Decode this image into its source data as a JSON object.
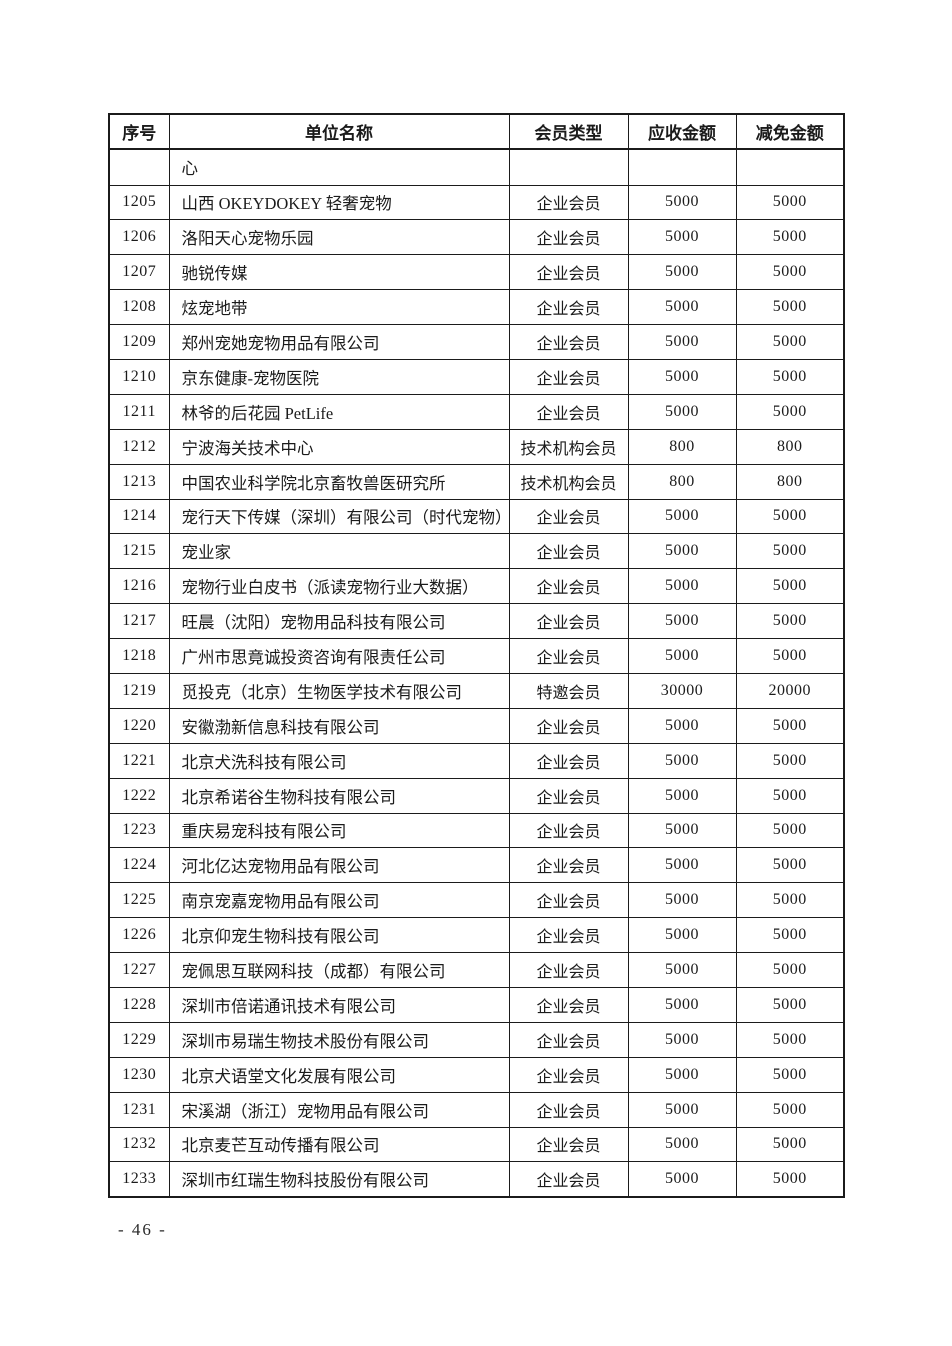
{
  "page": {
    "footer_text": "- 46 -"
  },
  "colors": {
    "background": "#ffffff",
    "border": "#1b1b1b",
    "text": "#1b1b1b"
  },
  "table": {
    "headers": [
      "序号",
      "单位名称",
      "会员类型",
      "应收金额",
      "减免金额"
    ],
    "continuation_row": {
      "no": "",
      "name": "心",
      "type": "",
      "receivable": "",
      "reduction": ""
    },
    "rows": [
      {
        "no": "1205",
        "name": "山西 OKEYDOKEY 轻奢宠物",
        "type": "企业会员",
        "receivable": "5000",
        "reduction": "5000"
      },
      {
        "no": "1206",
        "name": "洛阳天心宠物乐园",
        "type": "企业会员",
        "receivable": "5000",
        "reduction": "5000"
      },
      {
        "no": "1207",
        "name": "驰锐传媒",
        "type": "企业会员",
        "receivable": "5000",
        "reduction": "5000"
      },
      {
        "no": "1208",
        "name": "炫宠地带",
        "type": "企业会员",
        "receivable": "5000",
        "reduction": "5000"
      },
      {
        "no": "1209",
        "name": "郑州宠她宠物用品有限公司",
        "type": "企业会员",
        "receivable": "5000",
        "reduction": "5000"
      },
      {
        "no": "1210",
        "name": "京东健康-宠物医院",
        "type": "企业会员",
        "receivable": "5000",
        "reduction": "5000"
      },
      {
        "no": "1211",
        "name": "林爷的后花园 PetLife",
        "type": "企业会员",
        "receivable": "5000",
        "reduction": "5000"
      },
      {
        "no": "1212",
        "name": "宁波海关技术中心",
        "type": "技术机构会员",
        "receivable": "800",
        "reduction": "800"
      },
      {
        "no": "1213",
        "name": "中国农业科学院北京畜牧兽医研究所",
        "type": "技术机构会员",
        "receivable": "800",
        "reduction": "800"
      },
      {
        "no": "1214",
        "name": "宠行天下传媒（深圳）有限公司（时代宠物）",
        "type": "企业会员",
        "receivable": "5000",
        "reduction": "5000"
      },
      {
        "no": "1215",
        "name": "宠业家",
        "type": "企业会员",
        "receivable": "5000",
        "reduction": "5000"
      },
      {
        "no": "1216",
        "name": "宠物行业白皮书（派读宠物行业大数据）",
        "type": "企业会员",
        "receivable": "5000",
        "reduction": "5000"
      },
      {
        "no": "1217",
        "name": "旺晨（沈阳）宠物用品科技有限公司",
        "type": "企业会员",
        "receivable": "5000",
        "reduction": "5000"
      },
      {
        "no": "1218",
        "name": "广州市思竟诚投资咨询有限责任公司",
        "type": "企业会员",
        "receivable": "5000",
        "reduction": "5000"
      },
      {
        "no": "1219",
        "name": "觅投克（北京）生物医学技术有限公司",
        "type": "特邀会员",
        "receivable": "30000",
        "reduction": "20000"
      },
      {
        "no": "1220",
        "name": "安徽渤新信息科技有限公司",
        "type": "企业会员",
        "receivable": "5000",
        "reduction": "5000"
      },
      {
        "no": "1221",
        "name": "北京犬洗科技有限公司",
        "type": "企业会员",
        "receivable": "5000",
        "reduction": "5000"
      },
      {
        "no": "1222",
        "name": "北京希诺谷生物科技有限公司",
        "type": "企业会员",
        "receivable": "5000",
        "reduction": "5000"
      },
      {
        "no": "1223",
        "name": "重庆易宠科技有限公司",
        "type": "企业会员",
        "receivable": "5000",
        "reduction": "5000"
      },
      {
        "no": "1224",
        "name": "河北亿达宠物用品有限公司",
        "type": "企业会员",
        "receivable": "5000",
        "reduction": "5000"
      },
      {
        "no": "1225",
        "name": "南京宠嘉宠物用品有限公司",
        "type": "企业会员",
        "receivable": "5000",
        "reduction": "5000"
      },
      {
        "no": "1226",
        "name": "北京仰宠生物科技有限公司",
        "type": "企业会员",
        "receivable": "5000",
        "reduction": "5000"
      },
      {
        "no": "1227",
        "name": "宠佩思互联网科技（成都）有限公司",
        "type": "企业会员",
        "receivable": "5000",
        "reduction": "5000"
      },
      {
        "no": "1228",
        "name": "深圳市倍诺通讯技术有限公司",
        "type": "企业会员",
        "receivable": "5000",
        "reduction": "5000"
      },
      {
        "no": "1229",
        "name": "深圳市易瑞生物技术股份有限公司",
        "type": "企业会员",
        "receivable": "5000",
        "reduction": "5000"
      },
      {
        "no": "1230",
        "name": "北京犬语堂文化发展有限公司",
        "type": "企业会员",
        "receivable": "5000",
        "reduction": "5000"
      },
      {
        "no": "1231",
        "name": "宋溪湖（浙江）宠物用品有限公司",
        "type": "企业会员",
        "receivable": "5000",
        "reduction": "5000"
      },
      {
        "no": "1232",
        "name": "北京麦芒互动传播有限公司",
        "type": "企业会员",
        "receivable": "5000",
        "reduction": "5000"
      },
      {
        "no": "1233",
        "name": "深圳市红瑞生物科技股份有限公司",
        "type": "企业会员",
        "receivable": "5000",
        "reduction": "5000"
      }
    ]
  }
}
